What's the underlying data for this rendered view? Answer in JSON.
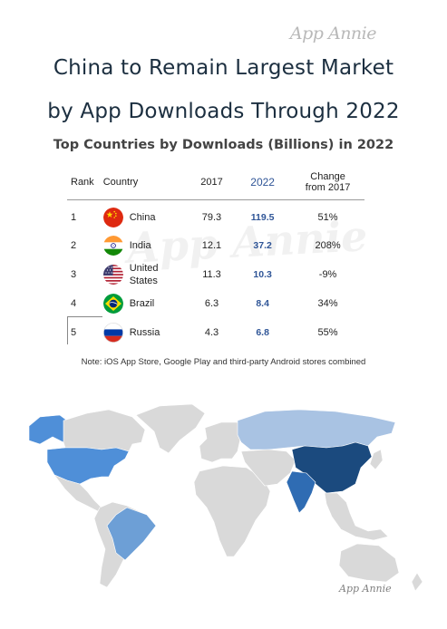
{
  "brand": "App Annie",
  "title_lines": [
    "China to Remain Largest Market",
    "by App Downloads Through 2022"
  ],
  "chart_data": {
    "type": "table",
    "title": "Top Countries by Downloads (Billions) in 2022",
    "columns": [
      "Rank",
      "Country",
      "2017",
      "2022",
      "Change from 2017"
    ],
    "column_labels": {
      "rank": "Rank",
      "country": "Country",
      "y2017": "2017",
      "y2022": "2022",
      "change_line1": "Change",
      "change_line2": "from 2017"
    },
    "rows": [
      {
        "rank": "1",
        "country": "China",
        "y2017": "79.3",
        "y2022": "119.5",
        "change": "51%"
      },
      {
        "rank": "2",
        "country": "India",
        "y2017": "12.1",
        "y2022": "37.2",
        "change": "208%"
      },
      {
        "rank": "3",
        "country_lines": [
          "United",
          "States"
        ],
        "y2017": "11.3",
        "y2022": "10.3",
        "change": "-9%"
      },
      {
        "rank": "4",
        "country": "Brazil",
        "y2017": "6.3",
        "y2022": "8.4",
        "change": "34%"
      },
      {
        "rank": "5",
        "country": "Russia",
        "y2017": "4.3",
        "y2022": "6.8",
        "change": "55%"
      }
    ],
    "highlight_color": "#2f5597",
    "note": "Note: iOS App Store, Google Play and third-party Android stores combined"
  },
  "map": {
    "colors": {
      "land": "#d9d9d9",
      "border": "#ffffff",
      "china": "#1b4a7e",
      "india": "#2f6cb3",
      "united_states": "#4f8fd8",
      "brazil": "#6d9fd6",
      "russia": "#a9c3e3"
    }
  }
}
